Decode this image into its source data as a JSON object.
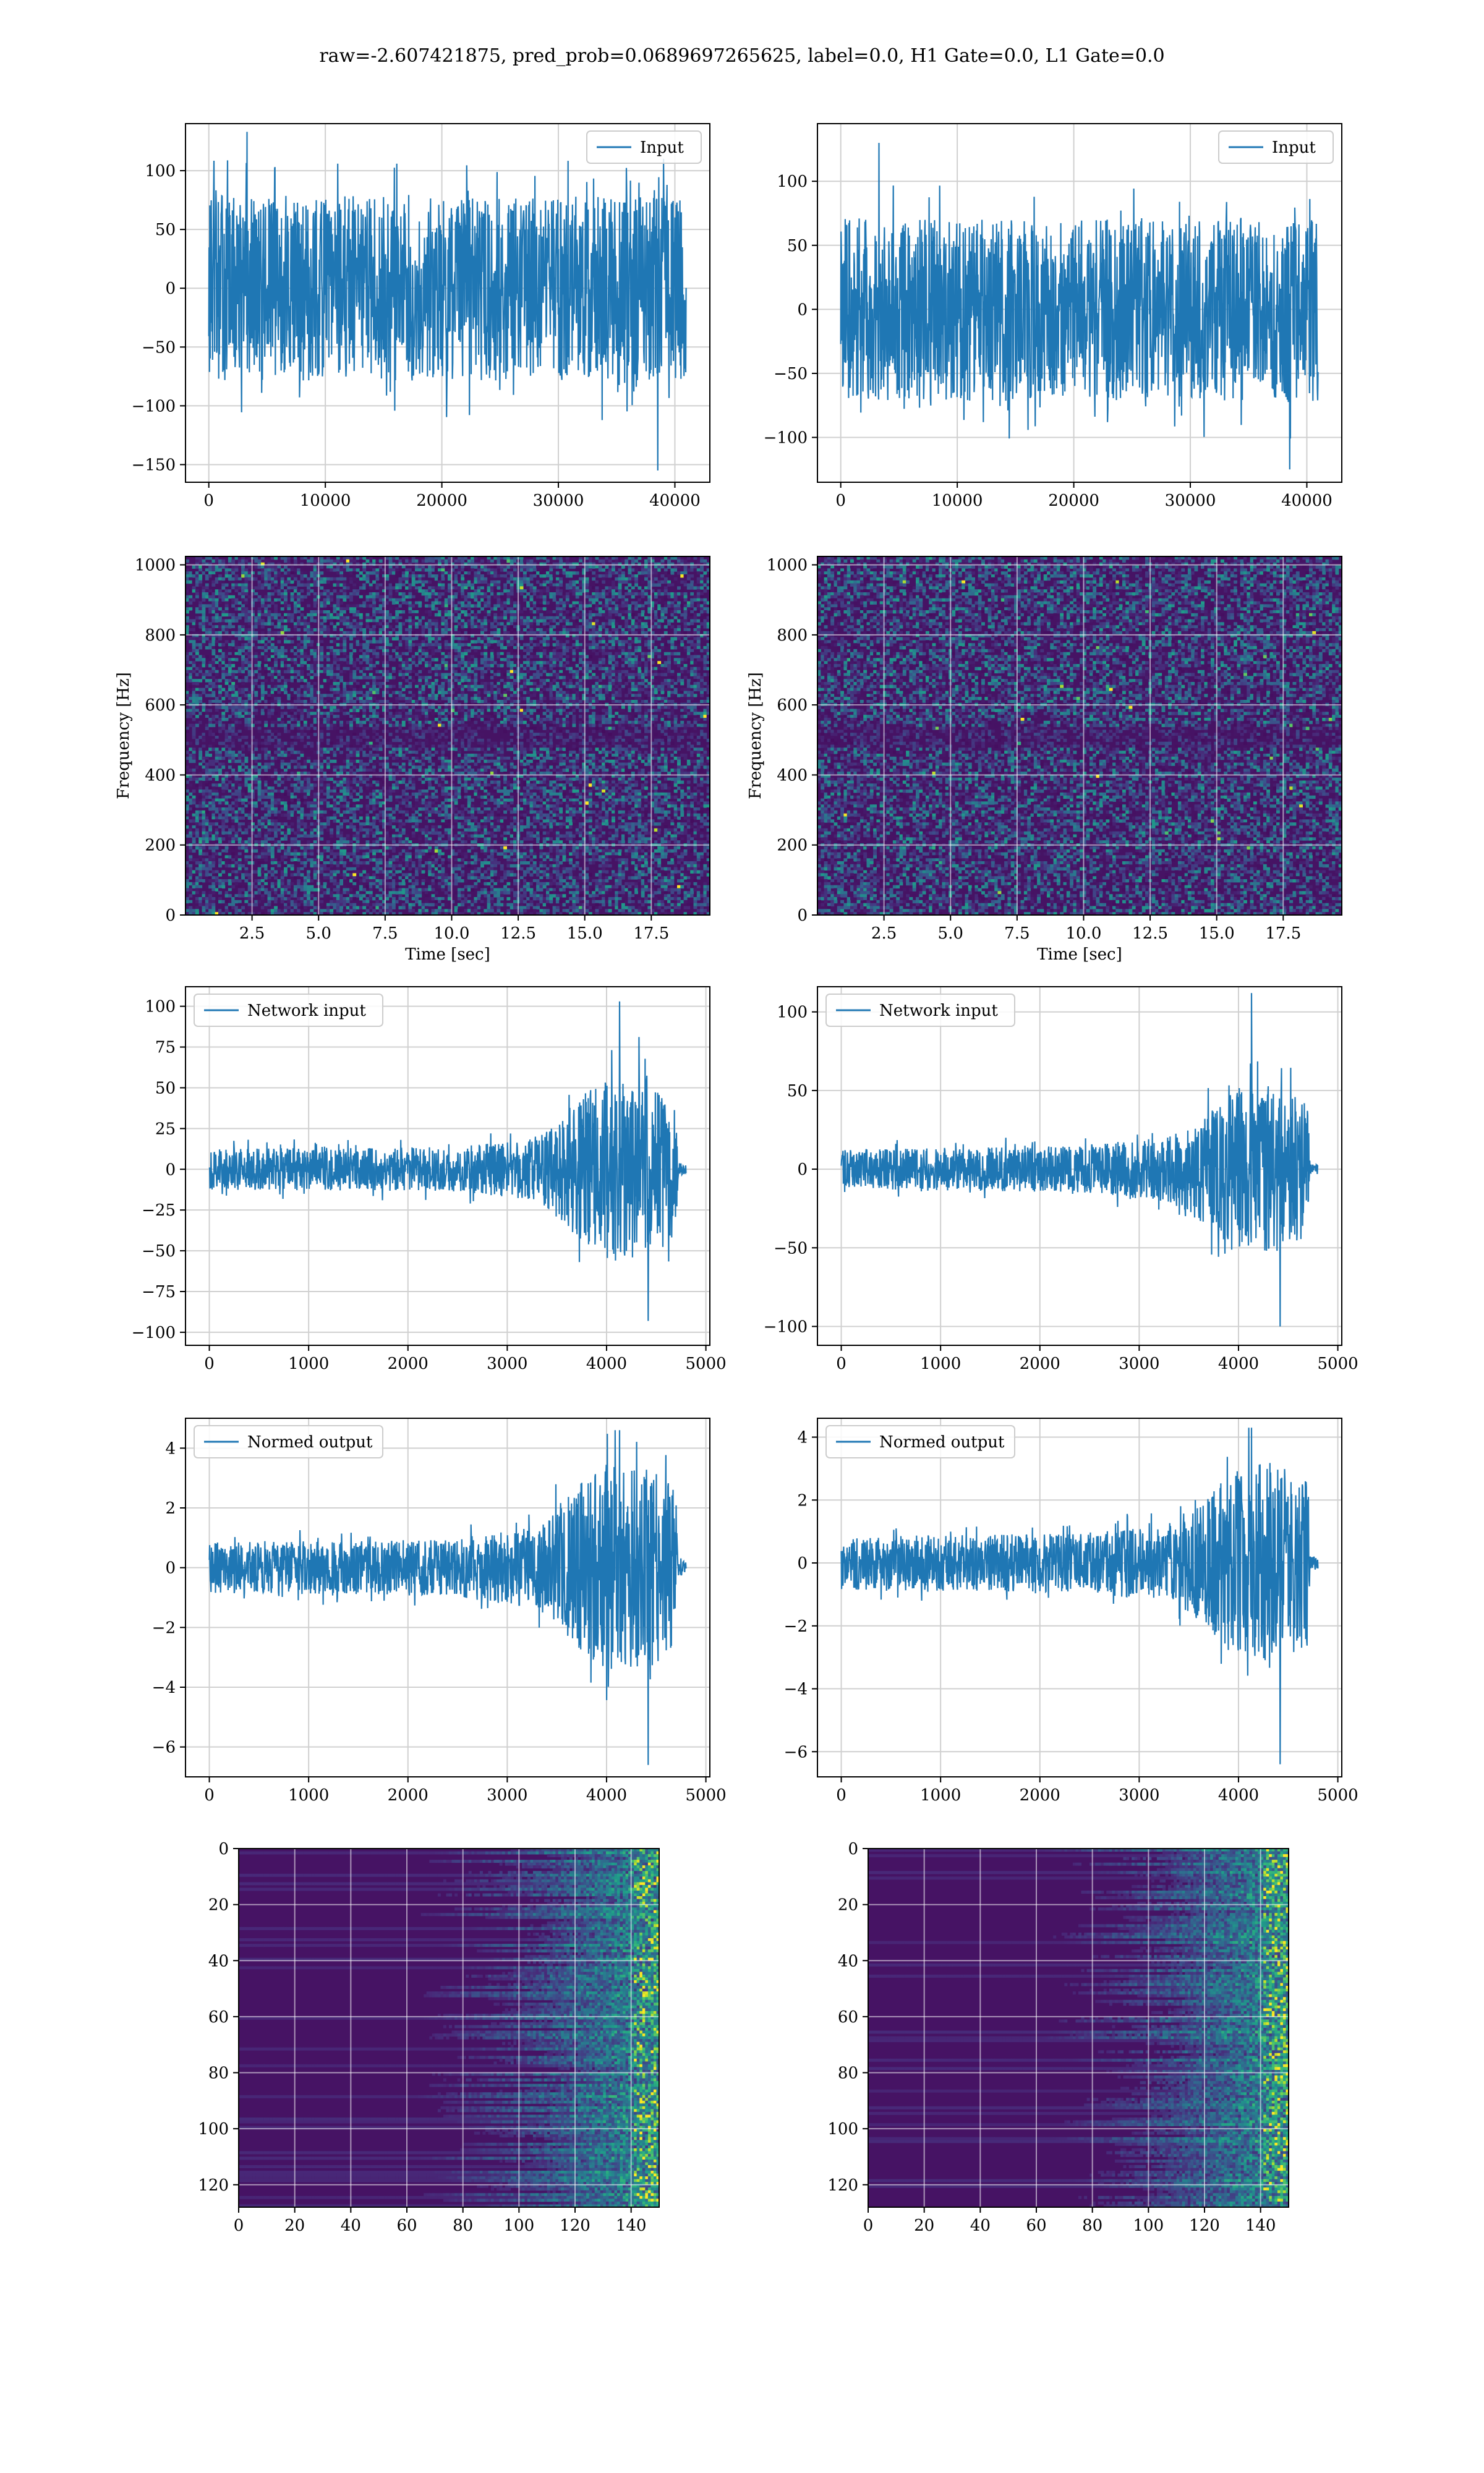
{
  "figure": {
    "title": "raw=-2.607421875, pred_prob=0.0689697265625, label=0.0, H1 Gate=0.0, L1 Gate=0.0",
    "line_color": "#1f77b4",
    "grid_color": "#d0d0d0"
  },
  "chart_data": [
    {
      "id": "input_h1",
      "type": "line",
      "legend": "Input",
      "legend_loc": "upper right",
      "xlim": [
        -2000,
        43000
      ],
      "ylim": [
        -165,
        140
      ],
      "xticks": [
        0,
        10000,
        20000,
        30000,
        40000
      ],
      "yticks": [
        -150,
        -100,
        -50,
        0,
        50,
        100
      ],
      "xticklabels": [
        "0",
        "10000",
        "20000",
        "30000",
        "40000"
      ],
      "yticklabels": [
        "−150",
        "−100",
        "−50",
        "0",
        "50",
        "100"
      ],
      "series": [
        {
          "x_range": [
            0,
            40960
          ],
          "envelope": [
            {
              "x": 0,
              "amp": 75
            },
            {
              "x": 40960,
              "amp": 75
            }
          ],
          "max": 133,
          "min": -155
        }
      ]
    },
    {
      "id": "input_l1",
      "type": "line",
      "legend": "Input",
      "legend_loc": "upper right",
      "xlim": [
        -2000,
        43000
      ],
      "ylim": [
        -135,
        145
      ],
      "xticks": [
        0,
        10000,
        20000,
        30000,
        40000
      ],
      "yticks": [
        -100,
        -50,
        0,
        50,
        100
      ],
      "xticklabels": [
        "0",
        "10000",
        "20000",
        "30000",
        "40000"
      ],
      "yticklabels": [
        "−100",
        "−50",
        "0",
        "50",
        "100"
      ],
      "series": [
        {
          "x_range": [
            0,
            40960
          ],
          "envelope": [
            {
              "x": 0,
              "amp": 68
            },
            {
              "x": 40960,
              "amp": 68
            }
          ],
          "max": 130,
          "min": -125
        }
      ]
    },
    {
      "id": "spec_h1",
      "type": "heatmap",
      "colormap": "viridis",
      "xlim": [
        0,
        19.7
      ],
      "ylim": [
        0,
        1024
      ],
      "xticks": [
        2.5,
        5.0,
        7.5,
        10.0,
        12.5,
        15.0,
        17.5
      ],
      "yticks": [
        0,
        200,
        400,
        600,
        800,
        1000
      ],
      "xticklabels": [
        "2.5",
        "5.0",
        "7.5",
        "10.0",
        "12.5",
        "15.0",
        "17.5"
      ],
      "yticklabels": [
        "0",
        "200",
        "400",
        "600",
        "800",
        "1000"
      ],
      "xlabel": "Time [sec]",
      "ylabel": "Frequency [Hz]"
    },
    {
      "id": "spec_l1",
      "type": "heatmap",
      "colormap": "viridis",
      "xlim": [
        0,
        19.7
      ],
      "ylim": [
        0,
        1024
      ],
      "xticks": [
        2.5,
        5.0,
        7.5,
        10.0,
        12.5,
        15.0,
        17.5
      ],
      "yticks": [
        0,
        200,
        400,
        600,
        800,
        1000
      ],
      "xticklabels": [
        "2.5",
        "5.0",
        "7.5",
        "10.0",
        "12.5",
        "15.0",
        "17.5"
      ],
      "yticklabels": [
        "0",
        "200",
        "400",
        "600",
        "800",
        "1000"
      ],
      "xlabel": "Time [sec]",
      "ylabel": "Frequency [Hz]"
    },
    {
      "id": "net_h1",
      "type": "line",
      "legend": "Network input",
      "legend_loc": "upper left",
      "xlim": [
        -240,
        5040
      ],
      "ylim": [
        -108,
        112
      ],
      "xticks": [
        0,
        1000,
        2000,
        3000,
        4000,
        5000
      ],
      "yticks": [
        -100,
        -75,
        -50,
        -25,
        0,
        25,
        50,
        75,
        100
      ],
      "xticklabels": [
        "0",
        "1000",
        "2000",
        "3000",
        "4000",
        "5000"
      ],
      "yticklabels": [
        "−100",
        "−75",
        "−50",
        "−25",
        "0",
        "25",
        "50",
        "75",
        "100"
      ],
      "series": [
        {
          "x_range": [
            0,
            4800
          ],
          "envelope": [
            {
              "x": 0,
              "amp": 12
            },
            {
              "x": 2400,
              "amp": 13
            },
            {
              "x": 3300,
              "amp": 18
            },
            {
              "x": 3700,
              "amp": 40
            },
            {
              "x": 4000,
              "amp": 55
            },
            {
              "x": 4400,
              "amp": 55
            },
            {
              "x": 4700,
              "amp": 40
            },
            {
              "x": 4720,
              "amp": 4
            },
            {
              "x": 4800,
              "amp": 3
            }
          ],
          "max": 103,
          "min": -93
        }
      ]
    },
    {
      "id": "net_l1",
      "type": "line",
      "legend": "Network input",
      "legend_loc": "upper left",
      "xlim": [
        -240,
        5040
      ],
      "ylim": [
        -112,
        116
      ],
      "xticks": [
        0,
        1000,
        2000,
        3000,
        4000,
        5000
      ],
      "yticks": [
        -100,
        -50,
        0,
        50,
        100
      ],
      "xticklabels": [
        "0",
        "1000",
        "2000",
        "3000",
        "4000",
        "5000"
      ],
      "yticklabels": [
        "−100",
        "−50",
        "0",
        "50",
        "100"
      ],
      "series": [
        {
          "x_range": [
            0,
            4800
          ],
          "envelope": [
            {
              "x": 0,
              "amp": 12
            },
            {
              "x": 2400,
              "amp": 14
            },
            {
              "x": 3300,
              "amp": 20
            },
            {
              "x": 3700,
              "amp": 35
            },
            {
              "x": 4000,
              "amp": 50
            },
            {
              "x": 4400,
              "amp": 50
            },
            {
              "x": 4700,
              "amp": 40
            },
            {
              "x": 4720,
              "amp": 3
            },
            {
              "x": 4800,
              "amp": 3
            }
          ],
          "max": 112,
          "min": -100
        }
      ]
    },
    {
      "id": "norm_h1",
      "type": "line",
      "legend": "Normed output",
      "legend_loc": "upper left",
      "xlim": [
        -240,
        5040
      ],
      "ylim": [
        -7.0,
        5.0
      ],
      "xticks": [
        0,
        1000,
        2000,
        3000,
        4000,
        5000
      ],
      "yticks": [
        -6,
        -4,
        -2,
        0,
        2,
        4
      ],
      "xticklabels": [
        "0",
        "1000",
        "2000",
        "3000",
        "4000",
        "5000"
      ],
      "yticklabels": [
        "−6",
        "−4",
        "−2",
        "0",
        "2",
        "4"
      ],
      "series": [
        {
          "x_range": [
            0,
            4800
          ],
          "envelope": [
            {
              "x": 0,
              "amp": 0.8
            },
            {
              "x": 2400,
              "amp": 0.9
            },
            {
              "x": 3300,
              "amp": 1.3
            },
            {
              "x": 3700,
              "amp": 2.6
            },
            {
              "x": 4000,
              "amp": 3.3
            },
            {
              "x": 4400,
              "amp": 3.3
            },
            {
              "x": 4700,
              "amp": 2.5
            },
            {
              "x": 4720,
              "amp": 0.25
            },
            {
              "x": 4800,
              "amp": 0.2
            }
          ],
          "max": 4.6,
          "min": -6.6
        }
      ]
    },
    {
      "id": "norm_l1",
      "type": "line",
      "legend": "Normed output",
      "legend_loc": "upper left",
      "xlim": [
        -240,
        5040
      ],
      "ylim": [
        -6.8,
        4.6
      ],
      "xticks": [
        0,
        1000,
        2000,
        3000,
        4000,
        5000
      ],
      "yticks": [
        -6,
        -4,
        -2,
        0,
        2,
        4
      ],
      "xticklabels": [
        "0",
        "1000",
        "2000",
        "3000",
        "4000",
        "5000"
      ],
      "yticklabels": [
        "−6",
        "−4",
        "−2",
        "0",
        "2",
        "4"
      ],
      "series": [
        {
          "x_range": [
            0,
            4800
          ],
          "envelope": [
            {
              "x": 0,
              "amp": 0.8
            },
            {
              "x": 2400,
              "amp": 0.9
            },
            {
              "x": 3300,
              "amp": 1.2
            },
            {
              "x": 3700,
              "amp": 2.0
            },
            {
              "x": 4000,
              "amp": 3.0
            },
            {
              "x": 4400,
              "amp": 3.0
            },
            {
              "x": 4700,
              "amp": 2.5
            },
            {
              "x": 4720,
              "amp": 0.2
            },
            {
              "x": 4800,
              "amp": 0.2
            }
          ],
          "max": 4.3,
          "min": -6.4
        }
      ]
    },
    {
      "id": "feat_h1",
      "type": "heatmap",
      "colormap": "viridis",
      "xlim": [
        0,
        150
      ],
      "ylim": [
        128,
        0
      ],
      "xticks": [
        0,
        20,
        40,
        60,
        80,
        100,
        120,
        140
      ],
      "yticks": [
        0,
        20,
        40,
        60,
        80,
        100,
        120
      ],
      "xticklabels": [
        "0",
        "20",
        "40",
        "60",
        "80",
        "100",
        "120",
        "140"
      ],
      "yticklabels": [
        "0",
        "20",
        "40",
        "60",
        "80",
        "100",
        "120"
      ]
    },
    {
      "id": "feat_l1",
      "type": "heatmap",
      "colormap": "viridis",
      "xlim": [
        0,
        150
      ],
      "ylim": [
        128,
        0
      ],
      "xticks": [
        0,
        20,
        40,
        60,
        80,
        100,
        120,
        140
      ],
      "yticks": [
        0,
        20,
        40,
        60,
        80,
        100,
        120
      ],
      "xticklabels": [
        "0",
        "20",
        "40",
        "60",
        "80",
        "100",
        "120",
        "140"
      ],
      "yticklabels": [
        "0",
        "20",
        "40",
        "60",
        "80",
        "100",
        "120"
      ]
    }
  ]
}
